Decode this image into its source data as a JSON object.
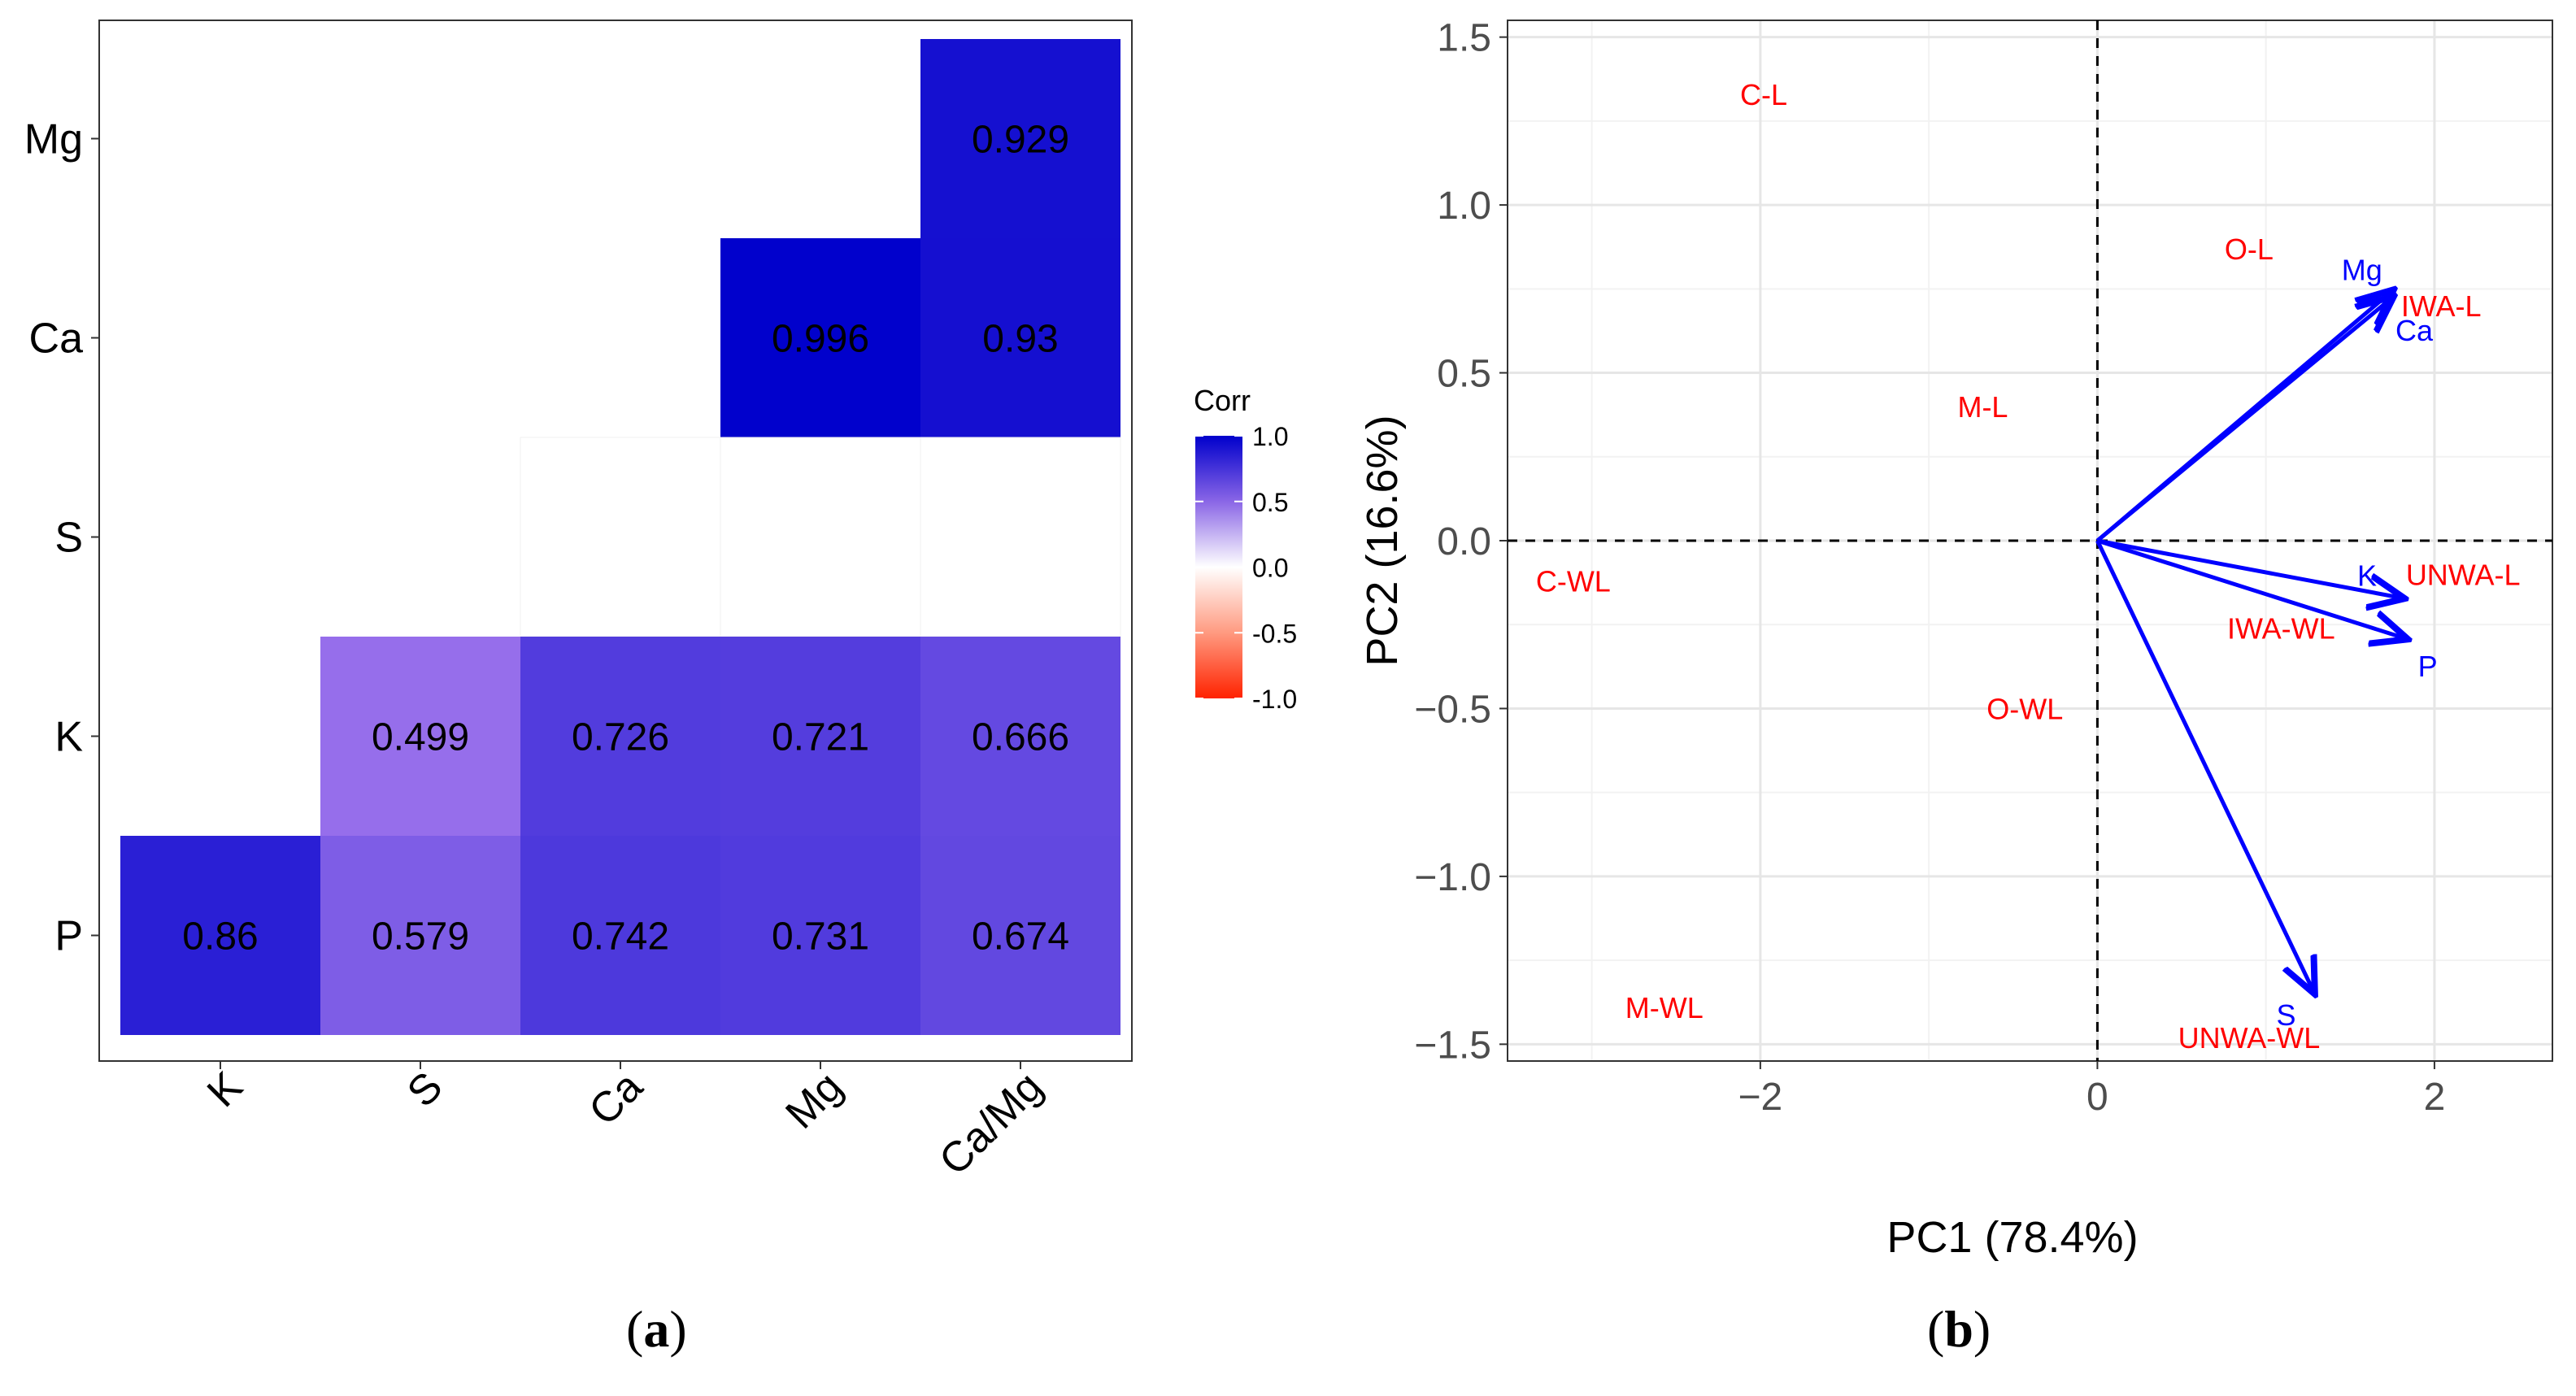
{
  "panel_labels": {
    "a": "a",
    "b": "b"
  },
  "chart_data": [
    {
      "type": "heatmap",
      "panel": "a",
      "title": "",
      "legend": {
        "title": "Corr",
        "ticks": [
          "1.0",
          "0.5",
          "0.0",
          "-0.5",
          "-1.0"
        ],
        "tick_values": [
          1.0,
          0.5,
          0.0,
          -0.5,
          -1.0
        ],
        "colors": {
          "high": "#0000CC",
          "mid": "#FFFFFF",
          "low": "#FF2200"
        },
        "placement": "right"
      },
      "x_categories": [
        "K",
        "S",
        "Ca",
        "Mg",
        "Ca/Mg"
      ],
      "y_categories": [
        "P",
        "K",
        "S",
        "Ca",
        "Mg"
      ],
      "cells": [
        {
          "row": "Mg",
          "col": "Ca/Mg",
          "value": 0.929,
          "label": "0.929"
        },
        {
          "row": "Ca",
          "col": "Mg",
          "value": 0.996,
          "label": "0.996"
        },
        {
          "row": "Ca",
          "col": "Ca/Mg",
          "value": 0.93,
          "label": "0.93"
        },
        {
          "row": "S",
          "col": "Ca",
          "value": 0.0,
          "label": ""
        },
        {
          "row": "S",
          "col": "Mg",
          "value": 0.0,
          "label": ""
        },
        {
          "row": "S",
          "col": "Ca/Mg",
          "value": 0.0,
          "label": ""
        },
        {
          "row": "K",
          "col": "S",
          "value": 0.499,
          "label": "0.499"
        },
        {
          "row": "K",
          "col": "Ca",
          "value": 0.726,
          "label": "0.726"
        },
        {
          "row": "K",
          "col": "Mg",
          "value": 0.721,
          "label": "0.721"
        },
        {
          "row": "K",
          "col": "Ca/Mg",
          "value": 0.666,
          "label": "0.666"
        },
        {
          "row": "P",
          "col": "K",
          "value": 0.86,
          "label": "0.86"
        },
        {
          "row": "P",
          "col": "S",
          "value": 0.579,
          "label": "0.579"
        },
        {
          "row": "P",
          "col": "Ca",
          "value": 0.742,
          "label": "0.742"
        },
        {
          "row": "P",
          "col": "Mg",
          "value": 0.731,
          "label": "0.731"
        },
        {
          "row": "P",
          "col": "Ca/Mg",
          "value": 0.674,
          "label": "0.674"
        }
      ]
    },
    {
      "type": "scatter",
      "subtype": "pca-biplot",
      "panel": "b",
      "title": "",
      "xlabel": "PC1 (78.4%)",
      "ylabel": "PC2 (16.6%)",
      "xlim": [
        -3.5,
        2.7
      ],
      "ylim": [
        -1.55,
        1.55
      ],
      "xticks": [
        -2,
        0,
        2
      ],
      "xtick_labels": [
        "−2",
        "0",
        "2"
      ],
      "yticks": [
        1.5,
        1.0,
        0.5,
        0.0,
        -0.5,
        -1.0,
        -1.5
      ],
      "ytick_labels": [
        "1.5",
        "1.0",
        "0.5",
        "0.0",
        "−0.5",
        "−1.0",
        "−1.5"
      ],
      "grid": true,
      "reference_lines": {
        "x": 0,
        "y": 0,
        "style": "dashed"
      },
      "samples": [
        {
          "label": "C-L",
          "x": -1.98,
          "y": 1.33
        },
        {
          "label": "O-L",
          "x": 0.9,
          "y": 0.87
        },
        {
          "label": "IWA-L",
          "x": 2.04,
          "y": 0.7
        },
        {
          "label": "M-L",
          "x": -0.68,
          "y": 0.4
        },
        {
          "label": "C-WL",
          "x": -3.11,
          "y": -0.12
        },
        {
          "label": "UNWA-L",
          "x": 2.17,
          "y": -0.1
        },
        {
          "label": "IWA-WL",
          "x": 1.09,
          "y": -0.26
        },
        {
          "label": "O-WL",
          "x": -0.43,
          "y": -0.5
        },
        {
          "label": "M-WL",
          "x": -2.57,
          "y": -1.39
        },
        {
          "label": "UNWA-WL",
          "x": 0.9,
          "y": -1.48
        }
      ],
      "loadings": [
        {
          "label": "Mg",
          "x": 1.74,
          "y": 0.74,
          "label_x": 1.57,
          "label_y": 0.81
        },
        {
          "label": "Ca",
          "x": 1.74,
          "y": 0.72,
          "label_x": 1.88,
          "label_y": 0.63
        },
        {
          "label": "K",
          "x": 1.8,
          "y": -0.17,
          "label_x": 1.6,
          "label_y": -0.1
        },
        {
          "label": "P",
          "x": 1.82,
          "y": -0.29,
          "label_x": 1.96,
          "label_y": -0.37
        },
        {
          "label": "S",
          "x": 1.28,
          "y": -1.34,
          "label_x": 1.12,
          "label_y": -1.41
        }
      ],
      "colors": {
        "samples": "#FF0000",
        "loadings": "#0000FF"
      }
    }
  ]
}
